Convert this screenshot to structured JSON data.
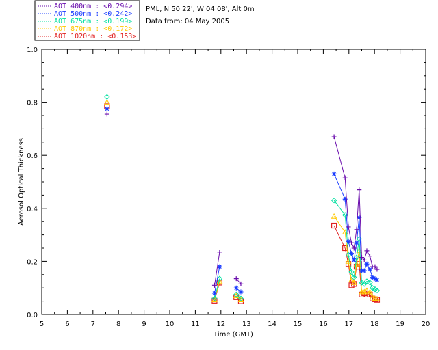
{
  "header": {
    "site": "PML, N 50 22', W 04 08', Alt 0m",
    "date": "Data from: 04 May 2005"
  },
  "chart_data": {
    "type": "scatter",
    "title": "",
    "xlabel": "Time (GMT)",
    "ylabel": "Aerosol Optical Thickness",
    "xlim": [
      5,
      20
    ],
    "ylim": [
      0,
      1
    ],
    "xticks": [
      5,
      6,
      7,
      8,
      9,
      10,
      11,
      12,
      13,
      14,
      15,
      16,
      17,
      18,
      19,
      20
    ],
    "yticks": [
      0.0,
      0.2,
      0.4,
      0.6,
      0.8,
      1.0
    ],
    "ytick_labels": [
      "0.0",
      "0.2",
      "0.4",
      "0.6",
      "0.8",
      "1.0"
    ],
    "x": [
      7.55,
      11.75,
      11.95,
      12.6,
      12.78,
      16.42,
      16.85,
      16.98,
      17.1,
      17.2,
      17.3,
      17.4,
      17.5,
      17.6,
      17.7,
      17.82,
      17.92,
      18.02,
      18.1
    ],
    "segments": [
      [
        0,
        0
      ],
      [
        1,
        2
      ],
      [
        3,
        4
      ],
      [
        5,
        18
      ]
    ],
    "series": [
      {
        "name": "AOT  400nm",
        "mean": "<0.294>",
        "color": "#6a0dad",
        "marker": "plus",
        "values": [
          0.755,
          0.11,
          0.235,
          0.135,
          0.115,
          0.67,
          0.515,
          0.33,
          0.27,
          0.25,
          0.32,
          0.47,
          0.215,
          0.205,
          0.24,
          0.22,
          0.18,
          0.18,
          0.17
        ]
      },
      {
        "name": "AOT  500nm",
        "mean": "<0.242>",
        "color": "#1a3cff",
        "marker": "star",
        "values": [
          0.775,
          0.08,
          0.18,
          0.1,
          0.085,
          0.53,
          0.435,
          0.275,
          0.23,
          0.205,
          0.27,
          0.365,
          0.165,
          0.165,
          0.19,
          0.17,
          0.14,
          0.135,
          0.13
        ]
      },
      {
        "name": "AOT  675nm",
        "mean": "<0.199>",
        "color": "#00e0a0",
        "marker": "diamond",
        "values": [
          0.82,
          0.06,
          0.135,
          0.075,
          0.06,
          0.43,
          0.375,
          0.225,
          0.16,
          0.14,
          0.215,
          0.285,
          0.12,
          0.115,
          0.125,
          0.12,
          0.1,
          0.095,
          0.09
        ]
      },
      {
        "name": "AOT  870nm",
        "mean": "<0.172>",
        "color": "#ffc800",
        "marker": "triangle",
        "values": [
          0.8,
          0.055,
          0.125,
          0.07,
          0.055,
          0.37,
          0.31,
          0.2,
          0.13,
          0.12,
          0.19,
          0.24,
          0.085,
          0.085,
          0.09,
          0.085,
          0.065,
          0.06,
          0.058
        ]
      },
      {
        "name": "AOT 1020nm",
        "mean": "<0.153>",
        "color": "#e02020",
        "marker": "square",
        "values": [
          0.785,
          0.052,
          0.12,
          0.065,
          0.05,
          0.335,
          0.25,
          0.19,
          0.11,
          0.115,
          0.18,
          0.19,
          0.075,
          0.08,
          0.075,
          0.075,
          0.06,
          0.057,
          0.055
        ]
      }
    ]
  }
}
